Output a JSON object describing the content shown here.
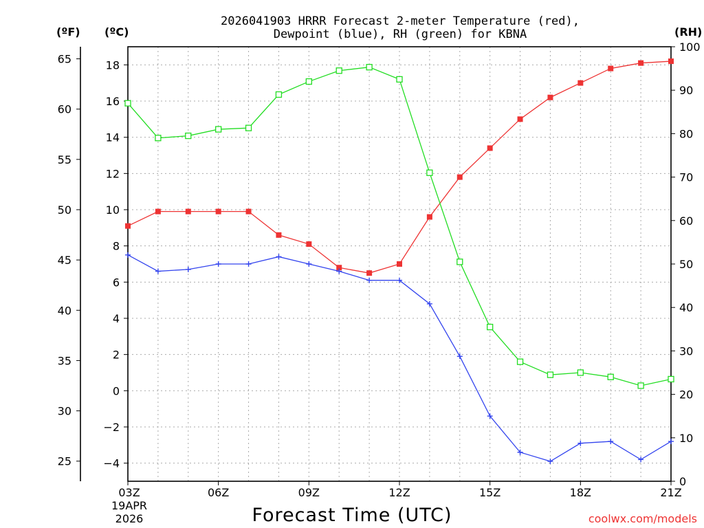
{
  "chart_data": {
    "type": "line",
    "title_line1": "2026041903 HRRR Forecast 2-meter Temperature (red),",
    "title_line2": "Dewpoint (blue), RH (green) for KBNA",
    "xlabel": "Forecast Time (UTC)",
    "x_start_label": [
      "03Z",
      "19APR",
      "2026"
    ],
    "x_hours": [
      3,
      4,
      5,
      6,
      7,
      8,
      9,
      10,
      11,
      12,
      13,
      14,
      15,
      16,
      17,
      18,
      19,
      20,
      21
    ],
    "x_ticks": [
      {
        "hour": 3,
        "label": "03Z"
      },
      {
        "hour": 6,
        "label": "06Z"
      },
      {
        "hour": 9,
        "label": "09Z"
      },
      {
        "hour": 12,
        "label": "12Z"
      },
      {
        "hour": 15,
        "label": "15Z"
      },
      {
        "hour": 18,
        "label": "18Z"
      },
      {
        "hour": 21,
        "label": "21Z"
      }
    ],
    "xlim": [
      3,
      21
    ],
    "axes": {
      "fahrenheit": {
        "label": "(ºF)",
        "ticks": [
          25,
          30,
          35,
          40,
          45,
          50,
          55,
          60,
          65
        ]
      },
      "celsius": {
        "label": "(ºC)",
        "ticks": [
          -4,
          -2,
          0,
          2,
          4,
          6,
          8,
          10,
          12,
          14,
          16,
          18
        ],
        "ylim": [
          -5,
          19
        ]
      },
      "rh": {
        "label": "(RH)",
        "ticks": [
          0,
          10,
          20,
          30,
          40,
          50,
          60,
          70,
          80,
          90,
          100
        ],
        "ylim": [
          0,
          100
        ]
      }
    },
    "grid": true,
    "series": [
      {
        "key": "temperature",
        "color": "#ee3333",
        "marker": "filled-square",
        "axis": "celsius",
        "values": [
          9.1,
          9.9,
          9.9,
          9.9,
          9.9,
          8.6,
          8.1,
          6.8,
          6.5,
          7.0,
          9.6,
          11.8,
          13.4,
          15.0,
          16.2,
          17.0,
          17.8,
          18.1,
          18.2
        ]
      },
      {
        "key": "dewpoint",
        "color": "#3344ee",
        "marker": "plus",
        "axis": "celsius",
        "values": [
          7.5,
          6.6,
          6.7,
          7.0,
          7.0,
          7.4,
          7.0,
          6.6,
          6.1,
          6.1,
          4.8,
          1.9,
          -1.4,
          -3.4,
          -3.9,
          -2.9,
          -2.8,
          -3.8,
          -2.8
        ]
      },
      {
        "key": "rh",
        "color": "#22dd22",
        "marker": "open-square",
        "axis": "rh",
        "values": [
          87,
          79,
          79.5,
          81,
          81.3,
          89,
          92,
          94.5,
          95.3,
          92.5,
          71,
          50.5,
          35.5,
          27.5,
          24.5,
          25,
          24,
          22,
          23.5
        ]
      }
    ],
    "credit": "coolwx.com/models"
  }
}
